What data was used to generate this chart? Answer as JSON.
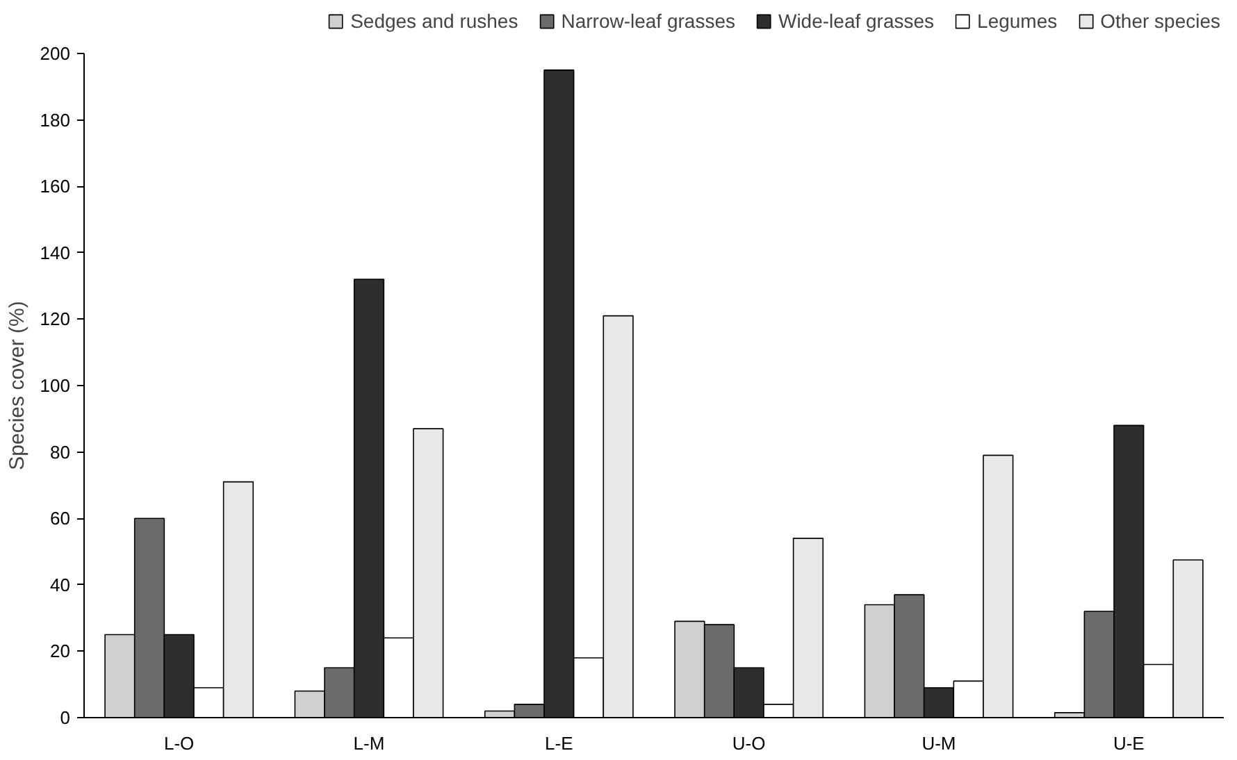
{
  "chart_data": {
    "type": "bar",
    "ylabel": "Species cover (%)",
    "categories": [
      "L-O",
      "L-M",
      "L-E",
      "U-O",
      "U-M",
      "U-E"
    ],
    "series": [
      {
        "name": "Sedges and rushes",
        "color": "#d0d0d0",
        "values": [
          25,
          8,
          2,
          29,
          34,
          1.5
        ]
      },
      {
        "name": "Narrow-leaf grasses",
        "color": "#6b6b6b",
        "values": [
          60,
          15,
          4,
          28,
          37,
          32
        ]
      },
      {
        "name": "Wide-leaf grasses",
        "color": "#2e2e2e",
        "values": [
          25,
          132,
          195,
          15,
          9,
          88
        ]
      },
      {
        "name": "Legumes",
        "color": "#ffffff",
        "values": [
          9,
          24,
          18,
          4,
          11,
          16
        ]
      },
      {
        "name": "Other species",
        "color": "#e8e8e8",
        "values": [
          71,
          87,
          121,
          54,
          79,
          47.5
        ]
      }
    ],
    "ylim": [
      0,
      200
    ],
    "yticks": [
      0,
      20,
      40,
      60,
      80,
      100,
      120,
      140,
      160,
      180,
      200
    ],
    "grid": false,
    "legend": "top"
  }
}
